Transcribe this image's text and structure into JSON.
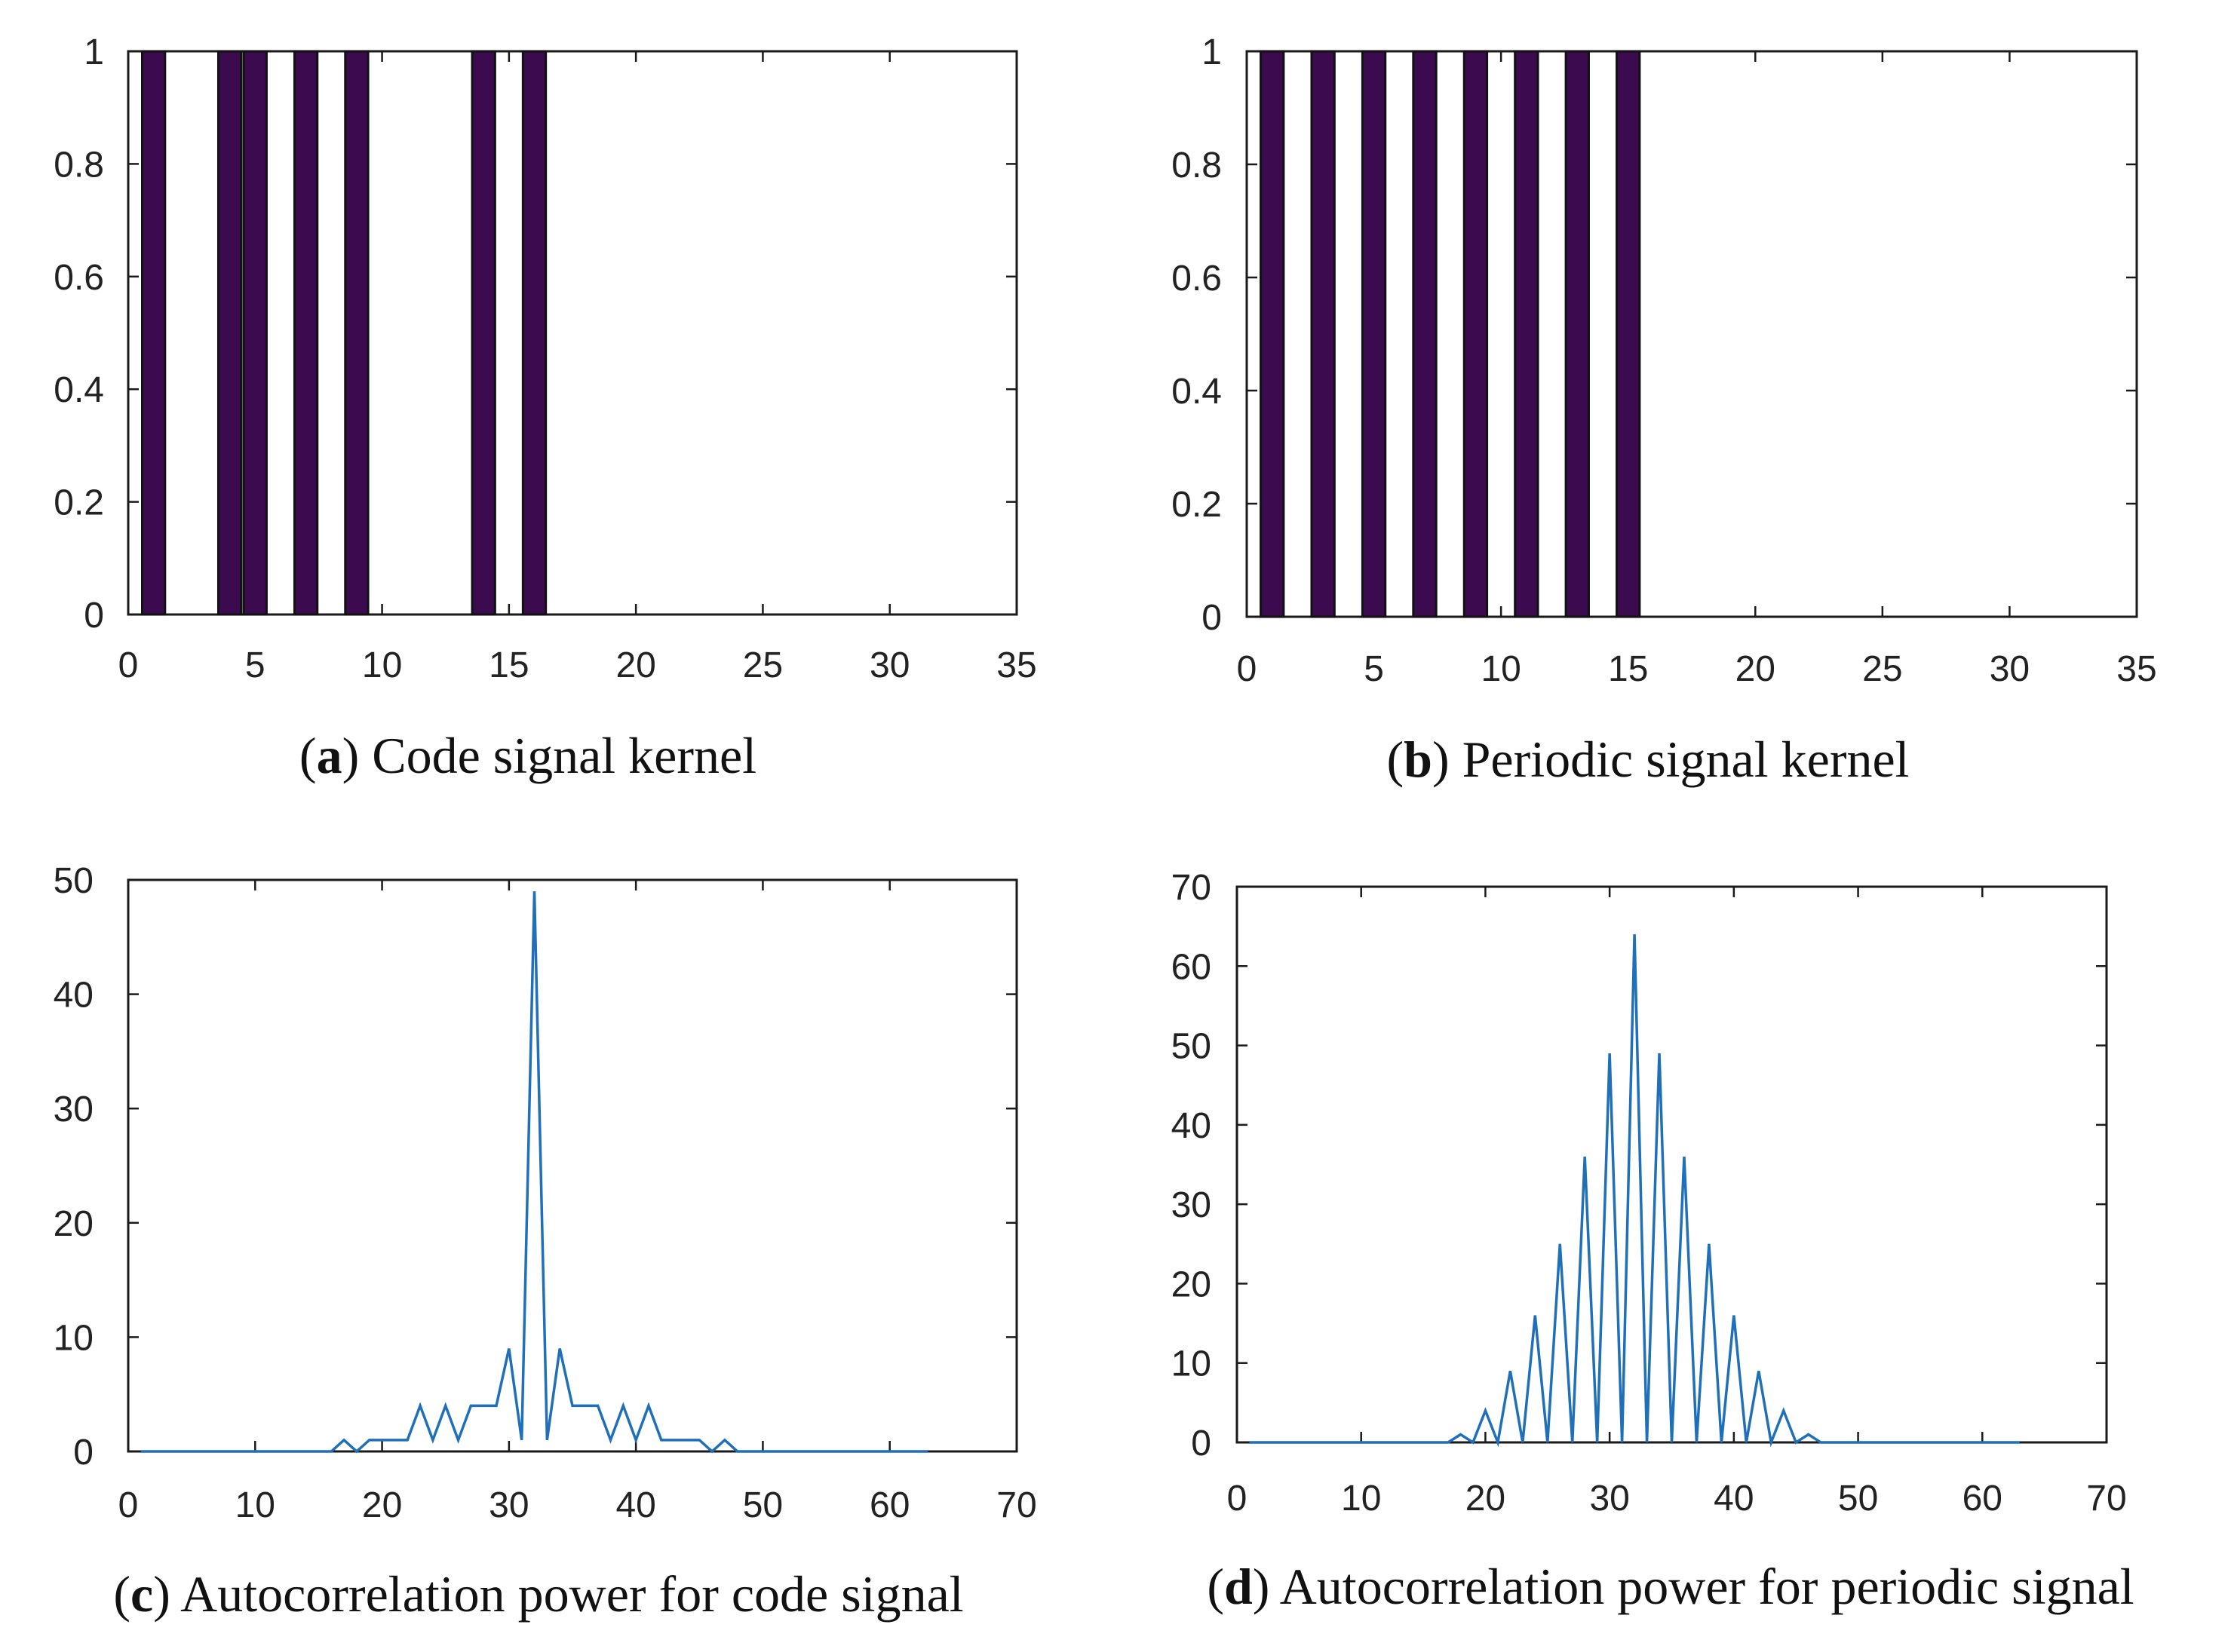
{
  "chart_data": [
    {
      "id": "a",
      "type": "bar",
      "caption_letter": "a",
      "caption_text": "Code signal kernel",
      "x": [
        1,
        4,
        5,
        7,
        9,
        14,
        16
      ],
      "values": [
        1,
        1,
        1,
        1,
        1,
        1,
        1
      ],
      "bar_width": 0.9,
      "xlim": [
        0,
        35
      ],
      "ylim": [
        0,
        1
      ],
      "xticks": [
        0,
        5,
        10,
        15,
        20,
        25,
        30,
        35
      ],
      "yticks": [
        0,
        0.2,
        0.4,
        0.6,
        0.8,
        1
      ],
      "ytick_labels": [
        "0",
        "0.2",
        "0.4",
        "0.6",
        "0.8",
        "1"
      ],
      "color": "#3b0a4f",
      "grid": false
    },
    {
      "id": "b",
      "type": "bar",
      "caption_letter": "b",
      "caption_text": "Periodic signal kernel",
      "x": [
        1,
        3,
        5,
        7,
        9,
        11,
        13,
        15
      ],
      "values": [
        1,
        1,
        1,
        1,
        1,
        1,
        1,
        1
      ],
      "bar_width": 0.9,
      "xlim": [
        0,
        35
      ],
      "ylim": [
        0,
        1
      ],
      "xticks": [
        0,
        5,
        10,
        15,
        20,
        25,
        30,
        35
      ],
      "yticks": [
        0,
        0.2,
        0.4,
        0.6,
        0.8,
        1
      ],
      "ytick_labels": [
        "0",
        "0.2",
        "0.4",
        "0.6",
        "0.8",
        "1"
      ],
      "color": "#3b0a4f",
      "grid": false
    },
    {
      "id": "c",
      "type": "line",
      "caption_letter": "c",
      "caption_text": "Autocorrelation power for code signal",
      "x": [
        1,
        2,
        3,
        4,
        5,
        6,
        7,
        8,
        9,
        10,
        11,
        12,
        13,
        14,
        15,
        16,
        17,
        18,
        19,
        20,
        21,
        22,
        23,
        24,
        25,
        26,
        27,
        28,
        29,
        30,
        31,
        32,
        33,
        34,
        35,
        36,
        37,
        38,
        39,
        40,
        41,
        42,
        43,
        44,
        45,
        46,
        47,
        48,
        49,
        50,
        51,
        52,
        53,
        54,
        55,
        56,
        57,
        58,
        59,
        60,
        61,
        62,
        63
      ],
      "values": [
        0,
        0,
        0,
        0,
        0,
        0,
        0,
        0,
        0,
        0,
        0,
        0,
        0,
        0,
        0,
        0,
        1,
        0,
        1,
        1,
        1,
        1,
        4,
        1,
        4,
        1,
        4,
        4,
        4,
        9,
        1,
        49,
        1,
        9,
        4,
        4,
        4,
        1,
        4,
        1,
        4,
        1,
        1,
        1,
        1,
        0,
        1,
        0,
        0,
        0,
        0,
        0,
        0,
        0,
        0,
        0,
        0,
        0,
        0,
        0,
        0,
        0,
        0
      ],
      "xlim": [
        0,
        70
      ],
      "ylim": [
        0,
        50
      ],
      "xticks": [
        0,
        10,
        20,
        30,
        40,
        50,
        60,
        70
      ],
      "yticks": [
        0,
        10,
        20,
        30,
        40,
        50
      ],
      "ytick_labels": [
        "0",
        "10",
        "20",
        "30",
        "40",
        "50"
      ],
      "color": "#1f6fb9",
      "grid": false
    },
    {
      "id": "d",
      "type": "line",
      "caption_letter": "d",
      "caption_text": "Autocorrelation power for periodic signal",
      "x": [
        1,
        2,
        3,
        4,
        5,
        6,
        7,
        8,
        9,
        10,
        11,
        12,
        13,
        14,
        15,
        16,
        17,
        18,
        19,
        20,
        21,
        22,
        23,
        24,
        25,
        26,
        27,
        28,
        29,
        30,
        31,
        32,
        33,
        34,
        35,
        36,
        37,
        38,
        39,
        40,
        41,
        42,
        43,
        44,
        45,
        46,
        47,
        48,
        49,
        50,
        51,
        52,
        53,
        54,
        55,
        56,
        57,
        58,
        59,
        60,
        61,
        62,
        63
      ],
      "values": [
        0,
        0,
        0,
        0,
        0,
        0,
        0,
        0,
        0,
        0,
        0,
        0,
        0,
        0,
        0,
        0,
        0,
        1,
        0,
        4,
        0,
        9,
        0,
        16,
        0,
        25,
        0,
        36,
        0,
        49,
        0,
        64,
        0,
        49,
        0,
        36,
        0,
        25,
        0,
        16,
        0,
        9,
        0,
        4,
        0,
        1,
        0,
        0,
        0,
        0,
        0,
        0,
        0,
        0,
        0,
        0,
        0,
        0,
        0,
        0,
        0,
        0,
        0
      ],
      "xlim": [
        0,
        70
      ],
      "ylim": [
        0,
        70
      ],
      "xticks": [
        0,
        10,
        20,
        30,
        40,
        50,
        60,
        70
      ],
      "yticks": [
        0,
        10,
        20,
        30,
        40,
        50,
        60,
        70
      ],
      "ytick_labels": [
        "0",
        "10",
        "20",
        "30",
        "40",
        "50",
        "60",
        "70"
      ],
      "color": "#1f6fb9",
      "grid": false
    }
  ]
}
